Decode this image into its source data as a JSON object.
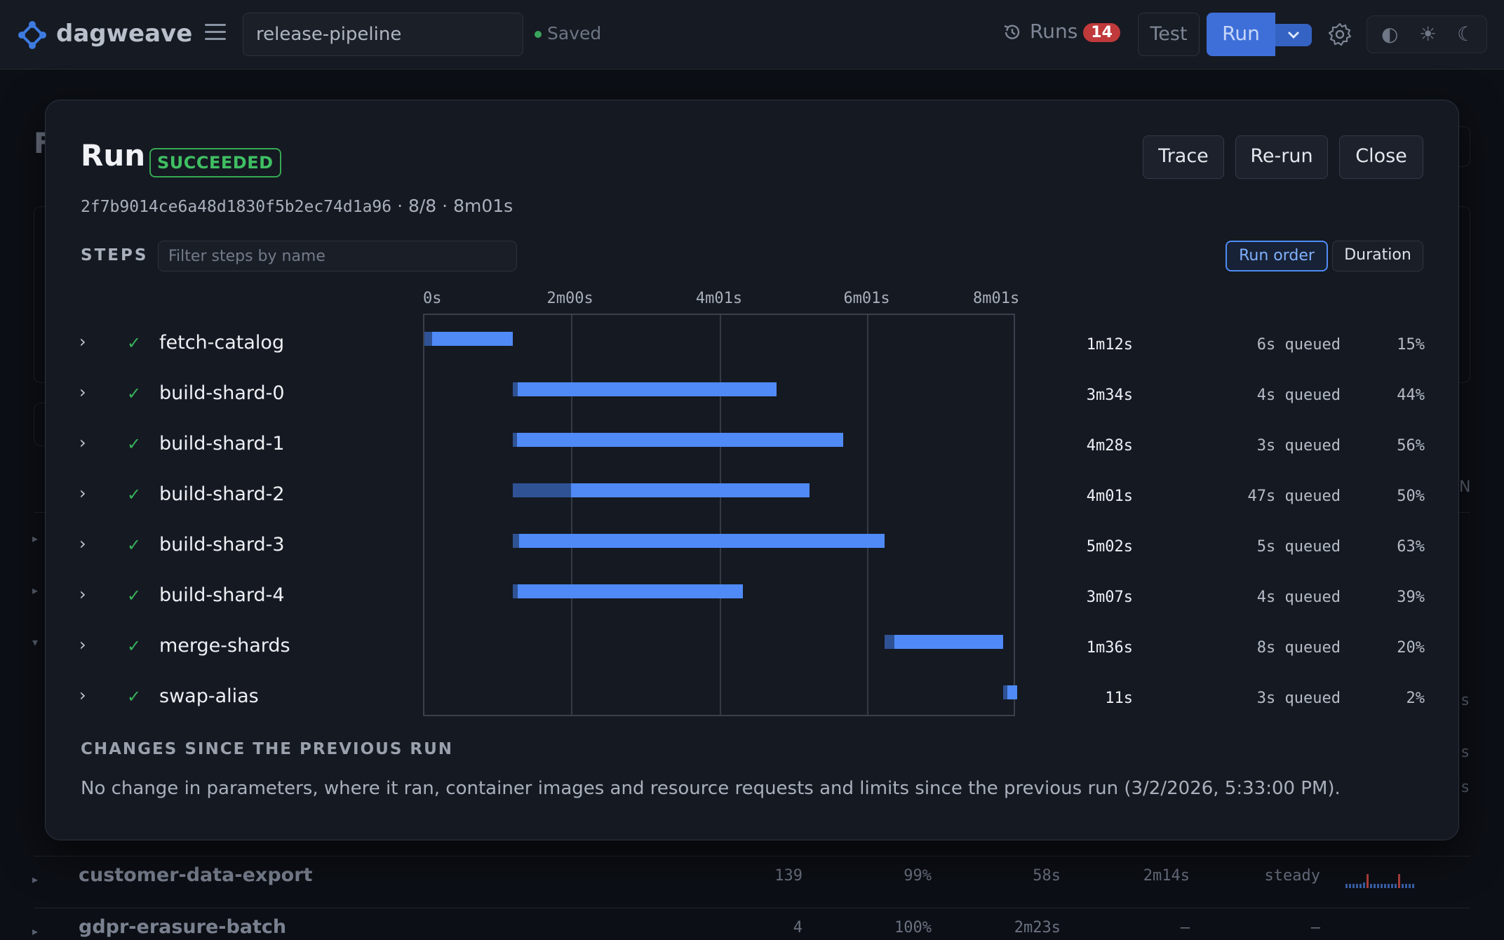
{
  "app": {
    "name": "dagweave",
    "pipeline_name": "release-pipeline",
    "saved_label": "Saved",
    "runs_label": "Runs",
    "runs_count": "14",
    "test_label": "Test",
    "run_label": "Run",
    "theme_icons": [
      "◐",
      "☀",
      "☾"
    ]
  },
  "background": {
    "fragments": {
      "heading_letter": "F",
      "col_letter": "N",
      "s1": "s",
      "s2": "s",
      "s3": "s"
    },
    "rows": [
      {
        "name": "customer-data-export",
        "runs": "139",
        "success": "99%",
        "p50": "58s",
        "p95": "2m14s",
        "trend": "steady"
      },
      {
        "name": "gdpr-erasure-batch",
        "runs": "4",
        "success": "100%",
        "p50": "2m23s",
        "p95": "—",
        "trend": "—"
      }
    ]
  },
  "modal": {
    "title": "Run",
    "status": "SUCCEEDED",
    "trace_label": "Trace",
    "rerun_label": "Re-run",
    "close_label": "Close",
    "run_id": "2f7b9014ce6a48d1830f5b2ec74d1a96",
    "steps_done": "8/8",
    "total_duration": "8m01s",
    "meta_separator": "·",
    "steps_label": "STEPS",
    "filter_placeholder": "Filter steps by name",
    "sort_run_order": "Run order",
    "sort_duration": "Duration",
    "changes_heading": "CHANGES SINCE THE PREVIOUS RUN",
    "changes_text": "No change in parameters, where it ran, container images and resource requests and limits since the previous run (3/2/2026, 5:33:00 PM)."
  },
  "chart_data": {
    "type": "gantt",
    "x_unit": "seconds",
    "x_range": [
      0,
      481
    ],
    "x_ticks": [
      {
        "value": 0,
        "label": "0s"
      },
      {
        "value": 120,
        "label": "2m00s"
      },
      {
        "value": 241,
        "label": "4m01s"
      },
      {
        "value": 361,
        "label": "6m01s"
      },
      {
        "value": 481,
        "label": "8m01s"
      }
    ],
    "steps": [
      {
        "name": "fetch-catalog",
        "status": "succeeded",
        "queued_at": 0,
        "queued_s": 6,
        "duration_s": 72,
        "duration": "1m12s",
        "queued_label": "6s queued",
        "percent": "15%"
      },
      {
        "name": "build-shard-0",
        "status": "succeeded",
        "queued_at": 72,
        "queued_s": 4,
        "duration_s": 214,
        "duration": "3m34s",
        "queued_label": "4s queued",
        "percent": "44%"
      },
      {
        "name": "build-shard-1",
        "status": "succeeded",
        "queued_at": 72,
        "queued_s": 3,
        "duration_s": 268,
        "duration": "4m28s",
        "queued_label": "3s queued",
        "percent": "56%"
      },
      {
        "name": "build-shard-2",
        "status": "succeeded",
        "queued_at": 72,
        "queued_s": 47,
        "duration_s": 241,
        "duration": "4m01s",
        "queued_label": "47s queued",
        "percent": "50%"
      },
      {
        "name": "build-shard-3",
        "status": "succeeded",
        "queued_at": 72,
        "queued_s": 5,
        "duration_s": 302,
        "duration": "5m02s",
        "queued_label": "5s queued",
        "percent": "63%"
      },
      {
        "name": "build-shard-4",
        "status": "succeeded",
        "queued_at": 72,
        "queued_s": 4,
        "duration_s": 187,
        "duration": "3m07s",
        "queued_label": "4s queued",
        "percent": "39%"
      },
      {
        "name": "merge-shards",
        "status": "succeeded",
        "queued_at": 374,
        "queued_s": 8,
        "duration_s": 96,
        "duration": "1m36s",
        "queued_label": "8s queued",
        "percent": "20%"
      },
      {
        "name": "swap-alias",
        "status": "succeeded",
        "queued_at": 470,
        "queued_s": 3,
        "duration_s": 11,
        "duration": "11s",
        "queued_label": "3s queued",
        "percent": "2%"
      }
    ],
    "colors": {
      "running": "#4f8af7",
      "queued": "#2f5294"
    }
  }
}
